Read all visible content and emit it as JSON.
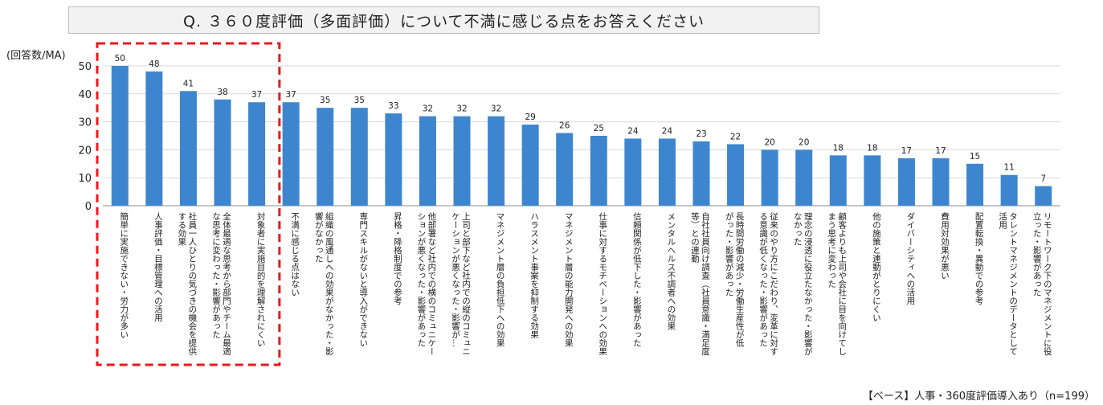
{
  "title": "Q. ３６０度評価（多面評価）について不満に感じる点をお答えください",
  "y_unit": "(回答数/MA)",
  "footnote": "【ベース】人事・360度評価導入あり（n=199）",
  "colors": {
    "bar": "#3d86cf",
    "highlight": "#e8191d",
    "grid": "#d9d9d9"
  },
  "chart_data": {
    "type": "bar",
    "ylim": [
      0,
      50
    ],
    "yticks": [
      0,
      10,
      20,
      30,
      40,
      50
    ],
    "grid": true,
    "highlighted_range": [
      0,
      4
    ],
    "categories": [
      [
        "簡単に実施できない・労力が多い"
      ],
      [
        "人事評価・目標管理への活用"
      ],
      [
        "社員一人ひとりの気づきの機会を提供",
        "する効果"
      ],
      [
        "全体最適な思考から部門やチーム最適",
        "な思考に変わった・影響があった"
      ],
      [
        "対象者に実施目的を理解されにくい"
      ],
      [
        "不満に感じる点はない"
      ],
      [
        "組織の風通しへの効果がなかった・影",
        "響がなかった"
      ],
      [
        "専門スキルがないと導入ができない"
      ],
      [
        "昇格・降格制度での参考"
      ],
      [
        "他部署など社内での横のコミュニケー",
        "ションが悪くなった・影響があった"
      ],
      [
        "上司と部下など社内での縦のコミュニ",
        "ケーションが悪くなった・影響が…"
      ],
      [
        "マネジメント層の負担低下への効果"
      ],
      [
        "ハラスメント事案を抑制する効果"
      ],
      [
        "マネジメント層の能力開発への効果"
      ],
      [
        "仕事に対するモチベーションへの効果"
      ],
      [
        "信頼関係が低下した・影響があった"
      ],
      [
        "メンタルヘルス不調者への効果"
      ],
      [
        "自社社員向け調査（社員意識・満足度",
        "等）との連動"
      ],
      [
        "長時間労働の減少・労働生産性が低",
        "がった・影響があった"
      ],
      [
        "従来のやり方にこだわり、変革に対す",
        "る意識が低くなった・影響があった"
      ],
      [
        "理念の浸透に役立たなかった・影響が",
        "なかった"
      ],
      [
        "顧客よりも上司や会社に目を向けてし",
        "まう思考に変わった"
      ],
      [
        "他の施策と連動がとりにくい"
      ],
      [
        "ダイバーシティへの活用"
      ],
      [
        "費用対効果が悪い"
      ],
      [
        "配置転換・異動での参考"
      ],
      [
        "タレントマネジメントのデータとして",
        "活用"
      ],
      [
        "リモートワーク下のマネジメントに役",
        "立った・影響があった"
      ]
    ],
    "values": [
      50,
      48,
      41,
      38,
      37,
      37,
      35,
      35,
      33,
      32,
      32,
      32,
      29,
      26,
      25,
      24,
      24,
      23,
      22,
      20,
      20,
      18,
      18,
      17,
      17,
      15,
      11,
      7
    ]
  }
}
